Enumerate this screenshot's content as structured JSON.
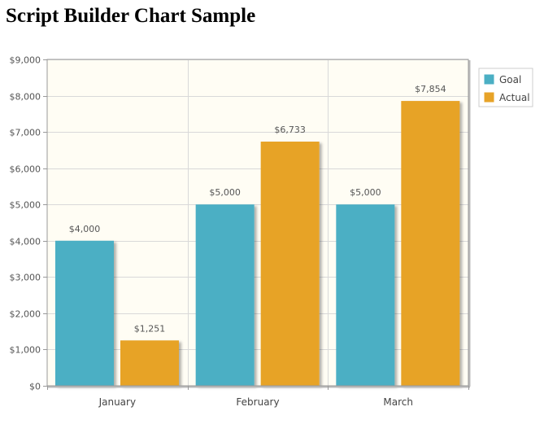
{
  "page": {
    "title": "Script Builder Chart Sample"
  },
  "chart_data": {
    "type": "bar",
    "categories": [
      "January",
      "February",
      "March"
    ],
    "series": [
      {
        "name": "Goal",
        "values": [
          4000,
          5000,
          5000
        ],
        "color": "#4bafc4"
      },
      {
        "name": "Actual",
        "values": [
          1251,
          6733,
          7854
        ],
        "color": "#e7a328"
      }
    ],
    "data_labels": [
      [
        "$4,000",
        "$5,000",
        "$5,000"
      ],
      [
        "$1,251",
        "$6,733",
        "$7,854"
      ]
    ],
    "ylim": [
      0,
      9000
    ],
    "yticks": [
      {
        "value": 0,
        "label": "$0"
      },
      {
        "value": 1000,
        "label": "$1,000"
      },
      {
        "value": 2000,
        "label": "$2,000"
      },
      {
        "value": 3000,
        "label": "$3,000"
      },
      {
        "value": 4000,
        "label": "$4,000"
      },
      {
        "value": 5000,
        "label": "$5,000"
      },
      {
        "value": 6000,
        "label": "$6,000"
      },
      {
        "value": 7000,
        "label": "$7,000"
      },
      {
        "value": 8000,
        "label": "$8,000"
      },
      {
        "value": 9000,
        "label": "$9,000"
      }
    ],
    "xlabel": "",
    "ylabel": "",
    "grid": true,
    "legend": "right",
    "plot_background": "#fffdf4"
  }
}
